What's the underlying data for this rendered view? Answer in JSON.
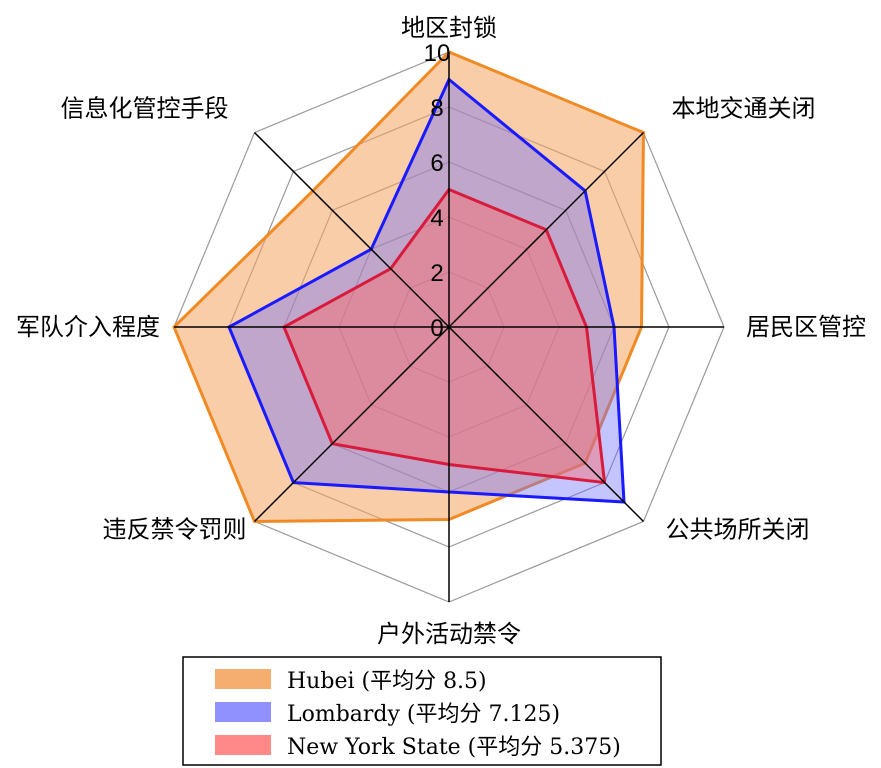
{
  "chart_data": {
    "type": "radar",
    "axes": [
      "地区封锁",
      "本地交通关闭",
      "居民区管控",
      "公共场所关闭",
      "户外活动禁令",
      "违反禁令罚则",
      "军队介入程度",
      "信息化管控手段"
    ],
    "rlim": [
      0,
      10
    ],
    "ticks": [
      "0",
      "2",
      "4",
      "6",
      "8",
      "10"
    ],
    "tick_values": [
      0,
      2,
      4,
      6,
      8,
      10
    ],
    "series": [
      {
        "name": "Hubei (平均分 8.5)",
        "values": [
          10,
          10,
          7,
          7,
          7,
          10,
          10,
          7
        ],
        "fill": "#f4a460",
        "fill_opacity": 0.55,
        "stroke": "#f08a24"
      },
      {
        "name": "Lombardy (平均分 7.125)",
        "values": [
          9,
          7,
          6,
          9,
          6,
          8,
          8,
          4
        ],
        "fill": "#6b6bff",
        "fill_opacity": 0.4,
        "stroke": "#1a1aff"
      },
      {
        "name": "New York State (平均分 5.375)",
        "values": [
          5,
          5,
          5,
          8,
          5,
          6,
          6,
          3
        ],
        "fill": "#ff6b6b",
        "fill_opacity": 0.45,
        "stroke": "#d81b3c"
      }
    ],
    "legend": "bottom",
    "grid": true
  }
}
